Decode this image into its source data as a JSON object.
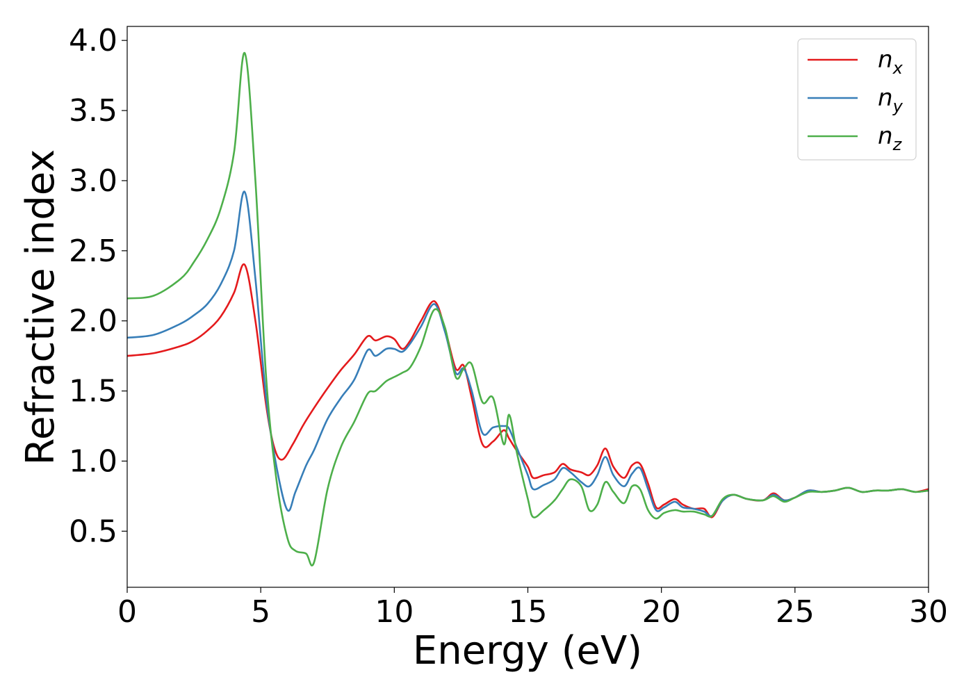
{
  "chart_data": {
    "type": "line",
    "title": "",
    "xlabel": "Energy (eV)",
    "ylabel": "Refractive index",
    "xlim": [
      0,
      30
    ],
    "ylim": [
      0.1,
      4.1
    ],
    "xticks": [
      0,
      5,
      10,
      15,
      20,
      25,
      30
    ],
    "xtick_labels": [
      "0",
      "5",
      "10",
      "15",
      "20",
      "25",
      "30"
    ],
    "yticks": [
      0.5,
      1.0,
      1.5,
      2.0,
      2.5,
      3.0,
      3.5,
      4.0
    ],
    "ytick_labels": [
      "0.5",
      "1.0",
      "1.5",
      "2.0",
      "2.5",
      "3.0",
      "3.5",
      "4.0"
    ],
    "grid": false,
    "legend_position": "top-right",
    "series": [
      {
        "name": "n_x",
        "legend_base": "n",
        "legend_sub": "x",
        "color": "#e41a1c",
        "x": [
          0,
          1,
          2,
          2.5,
          3,
          3.5,
          4,
          4.4,
          4.8,
          5.2,
          5.5,
          5.8,
          6.2,
          6.6,
          7,
          7.5,
          8,
          8.5,
          9,
          9.3,
          9.7,
          10,
          10.3,
          10.6,
          11,
          11.5,
          11.9,
          12.3,
          12.6,
          12.9,
          13.3,
          13.7,
          14.1,
          14.3,
          14.6,
          15,
          15.2,
          15.6,
          16,
          16.3,
          16.6,
          17,
          17.3,
          17.6,
          17.9,
          18.2,
          18.6,
          18.9,
          19.2,
          19.5,
          19.8,
          20.1,
          20.5,
          20.8,
          21.2,
          21.6,
          21.9,
          22.3,
          22.7,
          23.2,
          23.8,
          24.2,
          24.6,
          25,
          25.5,
          26,
          26.5,
          27,
          27.5,
          28,
          28.5,
          29,
          29.5,
          30
        ],
        "y": [
          1.75,
          1.77,
          1.82,
          1.86,
          1.93,
          2.03,
          2.2,
          2.4,
          2.0,
          1.4,
          1.1,
          1.01,
          1.12,
          1.26,
          1.38,
          1.52,
          1.65,
          1.76,
          1.89,
          1.86,
          1.89,
          1.87,
          1.8,
          1.86,
          2.0,
          2.14,
          1.94,
          1.66,
          1.68,
          1.45,
          1.12,
          1.14,
          1.22,
          1.16,
          1.07,
          0.96,
          0.88,
          0.9,
          0.92,
          0.98,
          0.94,
          0.92,
          0.9,
          0.97,
          1.09,
          0.96,
          0.88,
          0.97,
          0.98,
          0.84,
          0.67,
          0.69,
          0.73,
          0.69,
          0.66,
          0.66,
          0.6,
          0.72,
          0.76,
          0.73,
          0.72,
          0.77,
          0.72,
          0.74,
          0.79,
          0.78,
          0.79,
          0.81,
          0.78,
          0.79,
          0.79,
          0.8,
          0.78,
          0.8
        ]
      },
      {
        "name": "n_y",
        "legend_base": "n",
        "legend_sub": "y",
        "color": "#377eb8",
        "x": [
          0,
          1,
          2,
          2.5,
          3,
          3.5,
          4,
          4.4,
          4.8,
          5.2,
          5.6,
          6,
          6.3,
          6.7,
          7,
          7.5,
          8,
          8.5,
          9,
          9.3,
          9.7,
          10,
          10.3,
          10.6,
          11,
          11.5,
          11.9,
          12.3,
          12.6,
          12.9,
          13.3,
          13.7,
          14.1,
          14.3,
          14.6,
          15,
          15.2,
          15.6,
          16,
          16.3,
          16.6,
          17,
          17.3,
          17.6,
          17.9,
          18.2,
          18.6,
          18.9,
          19.2,
          19.5,
          19.8,
          20.1,
          20.5,
          20.8,
          21.2,
          21.6,
          21.9,
          22.3,
          22.7,
          23.2,
          23.8,
          24.2,
          24.6,
          25,
          25.5,
          26,
          26.5,
          27,
          27.5,
          28,
          28.5,
          29,
          29.5,
          30
        ],
        "y": [
          1.88,
          1.9,
          1.98,
          2.04,
          2.12,
          2.26,
          2.5,
          2.92,
          2.3,
          1.45,
          0.95,
          0.65,
          0.78,
          0.97,
          1.08,
          1.3,
          1.45,
          1.58,
          1.79,
          1.75,
          1.8,
          1.8,
          1.78,
          1.84,
          1.96,
          2.12,
          1.92,
          1.63,
          1.66,
          1.5,
          1.2,
          1.24,
          1.25,
          1.23,
          1.09,
          0.9,
          0.8,
          0.83,
          0.87,
          0.95,
          0.92,
          0.85,
          0.82,
          0.9,
          1.03,
          0.9,
          0.82,
          0.91,
          0.95,
          0.8,
          0.65,
          0.67,
          0.71,
          0.67,
          0.66,
          0.64,
          0.61,
          0.72,
          0.76,
          0.73,
          0.72,
          0.76,
          0.72,
          0.74,
          0.79,
          0.78,
          0.79,
          0.81,
          0.78,
          0.79,
          0.79,
          0.8,
          0.78,
          0.79
        ]
      },
      {
        "name": "n_z",
        "legend_base": "n",
        "legend_sub": "z",
        "color": "#4daf4a",
        "x": [
          0,
          1,
          2,
          2.5,
          3,
          3.5,
          4,
          4.4,
          4.8,
          5.2,
          5.6,
          6,
          6.3,
          6.7,
          7,
          7.5,
          8,
          8.5,
          9,
          9.3,
          9.7,
          10,
          10.3,
          10.6,
          11,
          11.5,
          11.9,
          12.3,
          12.6,
          12.9,
          13.3,
          13.7,
          14.1,
          14.3,
          14.6,
          15,
          15.2,
          15.6,
          16,
          16.3,
          16.6,
          17,
          17.3,
          17.6,
          17.9,
          18.2,
          18.6,
          18.9,
          19.2,
          19.5,
          19.8,
          20.1,
          20.5,
          20.8,
          21.2,
          21.6,
          21.9,
          22.3,
          22.7,
          23.2,
          23.8,
          24.2,
          24.6,
          25,
          25.5,
          26,
          26.5,
          27,
          27.5,
          28,
          28.5,
          29,
          29.5,
          30
        ],
        "y": [
          2.16,
          2.18,
          2.3,
          2.42,
          2.58,
          2.8,
          3.2,
          3.91,
          3.0,
          1.6,
          0.85,
          0.45,
          0.36,
          0.34,
          0.28,
          0.8,
          1.1,
          1.28,
          1.48,
          1.5,
          1.57,
          1.6,
          1.63,
          1.67,
          1.82,
          2.08,
          1.95,
          1.6,
          1.66,
          1.69,
          1.42,
          1.45,
          1.12,
          1.33,
          1.05,
          0.73,
          0.6,
          0.65,
          0.72,
          0.8,
          0.87,
          0.82,
          0.65,
          0.69,
          0.85,
          0.78,
          0.7,
          0.82,
          0.8,
          0.65,
          0.59,
          0.63,
          0.65,
          0.64,
          0.64,
          0.62,
          0.61,
          0.73,
          0.76,
          0.73,
          0.72,
          0.75,
          0.71,
          0.74,
          0.78,
          0.78,
          0.79,
          0.81,
          0.78,
          0.79,
          0.79,
          0.8,
          0.78,
          0.79
        ]
      }
    ]
  }
}
